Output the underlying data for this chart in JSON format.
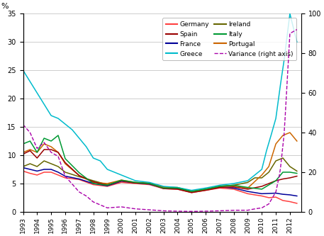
{
  "ylabel_left": "%",
  "ylim_left": [
    0,
    35
  ],
  "ylim_right": [
    0,
    100
  ],
  "yticks_left": [
    0,
    5,
    10,
    15,
    20,
    25,
    30,
    35
  ],
  "yticks_right": [
    0,
    20,
    40,
    60,
    80,
    100
  ],
  "colors": {
    "Germany": "#FF4040",
    "France": "#000099",
    "Ireland": "#666600",
    "Portugal": "#CC6600",
    "Spain": "#990000",
    "Greece": "#00BBCC",
    "Italy": "#009933",
    "Variance": "#AA00AA"
  },
  "legend_order": [
    "Germany",
    "Spain",
    "France",
    "Greece",
    "Ireland",
    "Italy",
    "Portugal",
    "Variance (right axis)"
  ],
  "figsize": [
    4.57,
    3.33
  ],
  "dpi": 100
}
